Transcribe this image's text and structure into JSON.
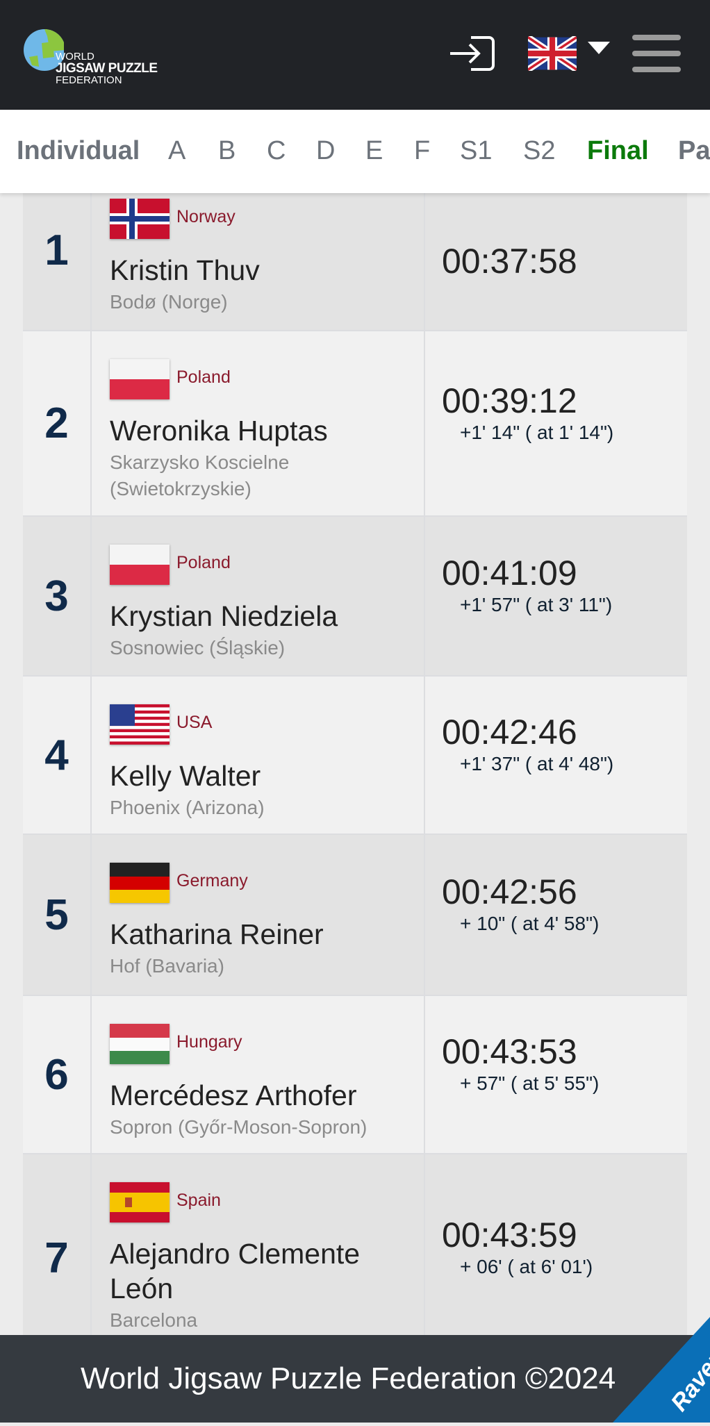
{
  "header": {
    "logo": {
      "line1": "WORLD",
      "line2": "JIGSAW PUZZLE",
      "line3": "FEDERATION"
    },
    "login_icon": "login-icon",
    "language": "en-GB",
    "menu_icon": "hamburger-icon"
  },
  "tabs": [
    {
      "label": "Individual",
      "active": false
    },
    {
      "label": "A",
      "active": false
    },
    {
      "label": "B",
      "active": false
    },
    {
      "label": "C",
      "active": false
    },
    {
      "label": "D",
      "active": false
    },
    {
      "label": "E",
      "active": false
    },
    {
      "label": "F",
      "active": false
    },
    {
      "label": "S1",
      "active": false
    },
    {
      "label": "S2",
      "active": false
    },
    {
      "label": "Final",
      "active": true
    },
    {
      "label": "Pa",
      "active": false
    }
  ],
  "colors": {
    "active_tab": "#0b7a0b",
    "country": "#8a1a2c",
    "rank": "#102a4a",
    "header_bg": "#212327",
    "footer_bg": "#353a40",
    "sponsor": "#0a6fb7"
  },
  "results": [
    {
      "rank": "1",
      "country": "Norway",
      "flag": "norway",
      "name": "Kristin Thuv",
      "city": "Bodø (Norge)",
      "time": "00:37:58",
      "diff": ""
    },
    {
      "rank": "2",
      "country": "Poland",
      "flag": "poland",
      "name": "Weronika Huptas",
      "city": "Skarzysko Koscielne (Swietokrzyskie)",
      "time": "00:39:12",
      "diff": "+1' 14\" ( at 1' 14\")"
    },
    {
      "rank": "3",
      "country": "Poland",
      "flag": "poland",
      "name": "Krystian Niedziela",
      "city": "Sosnowiec (Śląskie)",
      "time": "00:41:09",
      "diff": "+1' 57\" ( at 3' 11\")"
    },
    {
      "rank": "4",
      "country": "USA",
      "flag": "usa",
      "name": "Kelly Walter",
      "city": "Phoenix (Arizona)",
      "time": "00:42:46",
      "diff": "+1' 37\" ( at 4' 48\")"
    },
    {
      "rank": "5",
      "country": "Germany",
      "flag": "germany",
      "name": "Katharina Reiner",
      "city": "Hof (Bavaria)",
      "time": "00:42:56",
      "diff": "+ 10\" ( at 4' 58\")"
    },
    {
      "rank": "6",
      "country": "Hungary",
      "flag": "hungary",
      "name": "Mercédesz Arthofer",
      "city": "Sopron (Győr-Moson-Sopron)",
      "time": "00:43:53",
      "diff": "+ 57\" ( at 5' 55\")"
    },
    {
      "rank": "7",
      "country": "Spain",
      "flag": "spain",
      "name": "Alejandro Clemente León",
      "city": "Barcelona",
      "time": "00:43:59",
      "diff": "+ 06' ( at 6' 01')"
    }
  ],
  "footer": {
    "text": "World Jigsaw Puzzle Federation ©2024",
    "sponsor": "Ravensburger"
  }
}
